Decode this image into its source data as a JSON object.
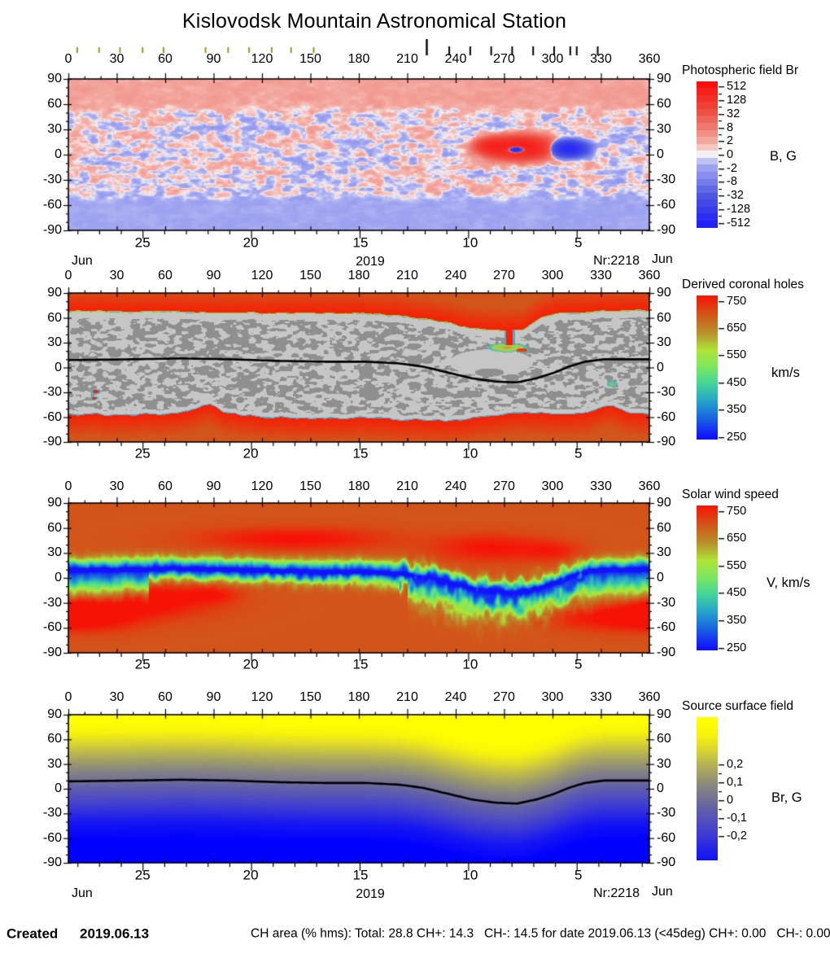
{
  "title": "Kislovodsk Mountain Astronomical Station",
  "observation_markers": {
    "olive_color": "#96971e",
    "black_color": "#000000",
    "olive_longitudes": [
      5.5,
      19,
      32,
      46,
      59,
      85,
      99,
      112,
      126,
      138,
      152
    ],
    "black_longitudes": [
      222,
      236,
      249,
      262,
      275,
      288,
      301,
      311,
      315,
      328
    ],
    "tall_black_longitude": 222
  },
  "axis": {
    "lon_labels": [
      "0",
      "30",
      "60",
      "90",
      "120",
      "150",
      "180",
      "210",
      "240",
      "270",
      "300",
      "330",
      "360"
    ],
    "lat_labels": [
      "90",
      "60",
      "30",
      "0",
      "-30",
      "-60",
      "-90"
    ],
    "day_labels": [
      "25",
      "20",
      "15",
      "10",
      "5"
    ],
    "day_longitudes": [
      46,
      113,
      181,
      249,
      316
    ],
    "deg_per_day": 13.45,
    "month_left": "Jun",
    "month_right": "Jun",
    "year": "2019",
    "rotation_number": "Nr:2218"
  },
  "panels": [
    {
      "title": "Photospheric field Br",
      "unit": "B, G",
      "colorbar_ticks": [
        "512",
        "128",
        "32",
        "8",
        "2",
        "0",
        "-2",
        "-8",
        "-32",
        "-128",
        "-512"
      ]
    },
    {
      "title": "Derived coronal holes",
      "unit": "km/s",
      "colorbar_ticks": [
        "750",
        "650",
        "550",
        "450",
        "350",
        "250"
      ]
    },
    {
      "title": "Solar wind speed",
      "unit": "V, km/s",
      "colorbar_ticks": [
        "750",
        "650",
        "550",
        "450",
        "350",
        "250"
      ]
    },
    {
      "title": "Source surface field",
      "unit": "Br, G",
      "colorbar_ticks": [
        "0,2",
        "0,1",
        "0",
        "-0,1",
        "-0,2"
      ]
    }
  ],
  "footer": {
    "created_label": "Created",
    "created_date": "2019.06.13",
    "ch_area_text": "CH area (% hms): Total: 28.8 CH+: 14.3   CH-: 14.5 for date 2019.06.13 (<45deg) CH+: 0.00   CH-: 0.00"
  },
  "chart_data": [
    {
      "type": "heatmap",
      "title": "Photospheric field Br",
      "x_range": [
        0,
        360
      ],
      "y_range": [
        -90,
        90
      ],
      "colorbar": {
        "unit": "B, G",
        "scale": "symlog",
        "tick_values": [
          512,
          128,
          32,
          8,
          2,
          0,
          -2,
          -8,
          -32,
          -128,
          -512
        ],
        "positive_color": "#ff0000",
        "negative_color": "#2020ff",
        "zero_color": "#f2f0f2"
      },
      "north_polar_cap": {
        "lat_above": 55,
        "mean_field_G": 2.6,
        "polarity": "+"
      },
      "south_polar_cap": {
        "lat_below": -45,
        "mean_field_G": -1.9,
        "polarity": "-"
      },
      "active_regions": [
        {
          "lon": 279,
          "lat": 8,
          "sx": 11,
          "sy": 7,
          "amp": 260
        },
        {
          "lon": 262,
          "lat": 10,
          "sx": 5,
          "sy": 5,
          "amp": 120
        },
        {
          "lon": 277.5,
          "lat": 6,
          "sx": 3.4,
          "sy": 2.4,
          "amp": -520
        },
        {
          "lon": 310,
          "lat": 7,
          "sx": 6,
          "sy": 5,
          "amp": -260
        }
      ]
    },
    {
      "type": "heatmap",
      "title": "Derived coronal holes",
      "x_range": [
        0,
        360
      ],
      "y_range": [
        -90,
        90
      ],
      "colorbar": {
        "unit": "km/s",
        "tick_values": [
          750,
          650,
          550,
          450,
          350,
          250
        ]
      },
      "north_ch_boundary": [
        [
          0,
          69
        ],
        [
          40,
          68
        ],
        [
          80,
          67
        ],
        [
          120,
          66
        ],
        [
          160,
          66
        ],
        [
          195,
          65
        ],
        [
          210,
          62
        ],
        [
          225,
          58
        ],
        [
          238,
          53
        ],
        [
          248,
          48
        ],
        [
          258,
          46
        ],
        [
          264,
          45
        ],
        [
          270,
          44
        ],
        [
          276,
          45
        ],
        [
          282,
          47
        ],
        [
          288,
          55
        ],
        [
          294,
          62
        ],
        [
          302,
          65
        ],
        [
          315,
          67
        ],
        [
          330,
          69
        ],
        [
          345,
          69
        ],
        [
          360,
          69
        ]
      ],
      "south_ch_boundary": [
        [
          0,
          -58
        ],
        [
          15,
          -57
        ],
        [
          30,
          -58
        ],
        [
          45,
          -57
        ],
        [
          60,
          -56
        ],
        [
          70,
          -55
        ],
        [
          78,
          -52
        ],
        [
          84,
          -46
        ],
        [
          88,
          -45
        ],
        [
          92,
          -49
        ],
        [
          96,
          -54
        ],
        [
          105,
          -58
        ],
        [
          120,
          -60
        ],
        [
          140,
          -62
        ],
        [
          160,
          -62
        ],
        [
          180,
          -61
        ],
        [
          195,
          -62
        ],
        [
          210,
          -64
        ],
        [
          225,
          -65
        ],
        [
          240,
          -64
        ],
        [
          252,
          -61
        ],
        [
          262,
          -58
        ],
        [
          272,
          -56
        ],
        [
          285,
          -55
        ],
        [
          300,
          -56
        ],
        [
          312,
          -57
        ],
        [
          322,
          -55
        ],
        [
          330,
          -50
        ],
        [
          334,
          -46
        ],
        [
          338,
          -47
        ],
        [
          342,
          -52
        ],
        [
          348,
          -56
        ],
        [
          360,
          -57
        ]
      ],
      "neutral_line": [
        [
          0,
          9
        ],
        [
          40,
          10
        ],
        [
          70,
          11
        ],
        [
          100,
          10
        ],
        [
          130,
          8
        ],
        [
          160,
          7
        ],
        [
          185,
          7
        ],
        [
          205,
          5
        ],
        [
          220,
          1
        ],
        [
          235,
          -6
        ],
        [
          250,
          -13
        ],
        [
          265,
          -17
        ],
        [
          278,
          -18
        ],
        [
          290,
          -13
        ],
        [
          300,
          -7
        ],
        [
          310,
          1
        ],
        [
          320,
          7
        ],
        [
          332,
          10
        ],
        [
          360,
          10
        ]
      ],
      "equatorial_coronal_hole": {
        "lon": 272,
        "lat": 24,
        "rx": 10,
        "ry": 4.5
      },
      "red_lobe": {
        "lon": 281,
        "lat": 21,
        "rx": 3.5,
        "ry": 2.2
      },
      "channel": {
        "lon": 273.5,
        "half_width": 2,
        "lat_from": 27,
        "lat_to": 52
      },
      "spots": [
        {
          "lon": 17,
          "lat": -29,
          "r": 2,
          "color": "red"
        },
        {
          "lon": 16,
          "lat": -37,
          "r": 1.5,
          "color": "red"
        },
        {
          "lon": 337,
          "lat": -20,
          "r": 2,
          "color": "green"
        }
      ]
    },
    {
      "type": "heatmap",
      "title": "Solar wind speed",
      "x_range": [
        0,
        360
      ],
      "y_range": [
        -90,
        90
      ],
      "colorbar": {
        "unit": "V, km/s",
        "tick_values": [
          750,
          650,
          550,
          450,
          350,
          250
        ]
      },
      "background_speed": 700,
      "slow_band_min_speed": 270,
      "neutral_line": [
        [
          0,
          9
        ],
        [
          40,
          10
        ],
        [
          70,
          11
        ],
        [
          100,
          10
        ],
        [
          130,
          8
        ],
        [
          160,
          7
        ],
        [
          185,
          7
        ],
        [
          205,
          5
        ],
        [
          220,
          1
        ],
        [
          235,
          -6
        ],
        [
          250,
          -13
        ],
        [
          265,
          -17
        ],
        [
          278,
          -18
        ],
        [
          290,
          -13
        ],
        [
          300,
          -7
        ],
        [
          310,
          1
        ],
        [
          320,
          7
        ],
        [
          332,
          10
        ],
        [
          360,
          10
        ]
      ],
      "fast_patches": [
        {
          "lon": 140,
          "lat": 47,
          "sx": 38,
          "sy": 9,
          "amp": 80
        },
        {
          "lon": 262,
          "lat": 36,
          "sx": 24,
          "sy": 11,
          "amp": 75
        },
        {
          "lon": 300,
          "lat": 32,
          "sx": 12,
          "sy": 8,
          "amp": 50
        },
        {
          "lon": 48,
          "lat": -26,
          "sx": 28,
          "sy": 14,
          "amp": 100
        },
        {
          "lon": 14,
          "lat": -46,
          "sx": 22,
          "sy": 12,
          "amp": 85
        },
        {
          "lon": 90,
          "lat": -20,
          "sx": 10,
          "sy": 7,
          "amp": 55
        },
        {
          "lon": 335,
          "lat": -48,
          "sx": 28,
          "sy": 10,
          "amp": 75
        },
        {
          "lon": 358,
          "lat": -38,
          "sx": 14,
          "sy": 10,
          "amp": 55
        }
      ]
    },
    {
      "type": "heatmap",
      "title": "Source surface field",
      "x_range": [
        0,
        360
      ],
      "y_range": [
        -90,
        90
      ],
      "colorbar": {
        "unit": "Br, G",
        "tick_values": [
          0.2,
          0.1,
          0,
          -0.1,
          -0.2
        ],
        "positive_color": "#ffff00",
        "negative_color": "#0000ff"
      },
      "neutral_line": [
        [
          0,
          9
        ],
        [
          40,
          10
        ],
        [
          70,
          11
        ],
        [
          100,
          10
        ],
        [
          130,
          8
        ],
        [
          160,
          7
        ],
        [
          185,
          7
        ],
        [
          205,
          5
        ],
        [
          220,
          1
        ],
        [
          235,
          -6
        ],
        [
          250,
          -13
        ],
        [
          265,
          -17
        ],
        [
          278,
          -18
        ],
        [
          290,
          -13
        ],
        [
          300,
          -7
        ],
        [
          310,
          1
        ],
        [
          320,
          7
        ],
        [
          332,
          10
        ],
        [
          360,
          10
        ]
      ]
    }
  ]
}
